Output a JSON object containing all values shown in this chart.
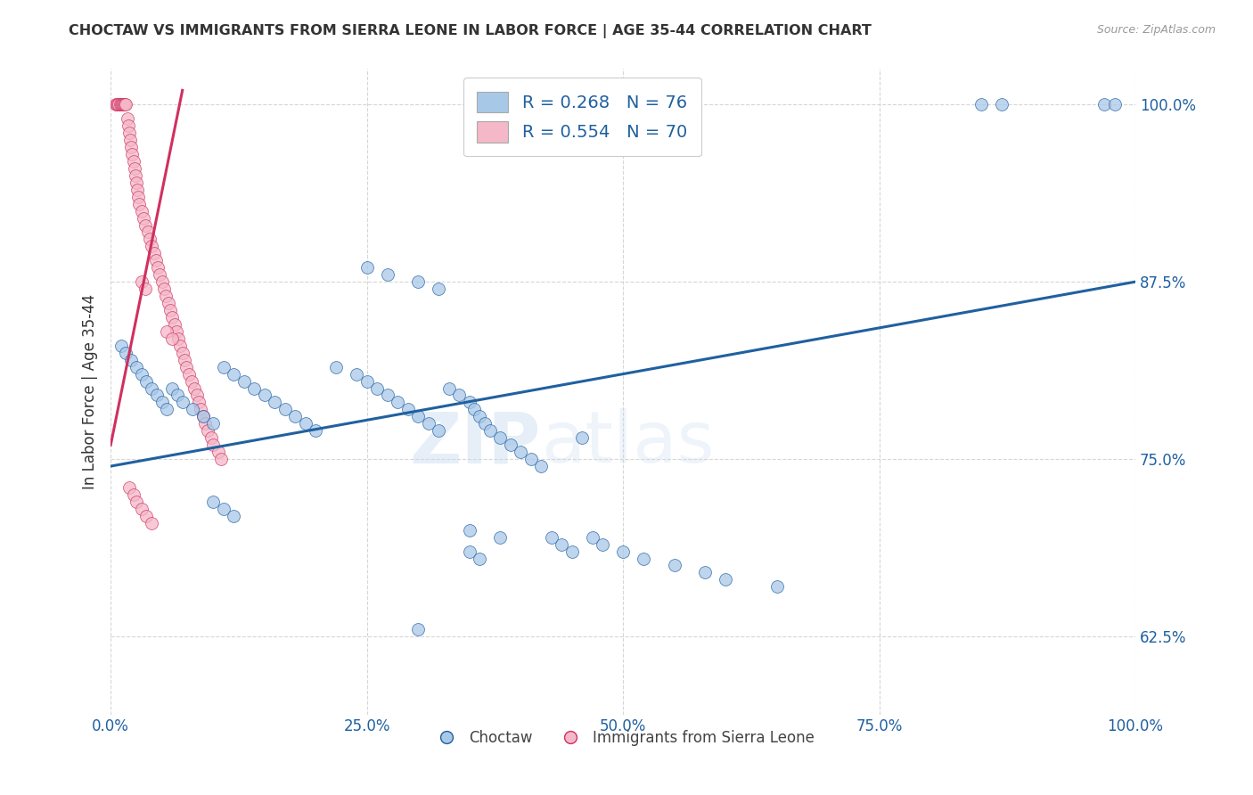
{
  "title": "CHOCTAW VS IMMIGRANTS FROM SIERRA LEONE IN LABOR FORCE | AGE 35-44 CORRELATION CHART",
  "source": "Source: ZipAtlas.com",
  "ylabel": "In Labor Force | Age 35-44",
  "xlim": [
    0.0,
    1.0
  ],
  "ylim": [
    0.57,
    1.025
  ],
  "yticks": [
    0.625,
    0.75,
    0.875,
    1.0
  ],
  "ytick_labels": [
    "62.5%",
    "75.0%",
    "87.5%",
    "100.0%"
  ],
  "xticks": [
    0.0,
    0.25,
    0.5,
    0.75,
    1.0
  ],
  "xtick_labels": [
    "0.0%",
    "25.0%",
    "50.0%",
    "75.0%",
    "100.0%"
  ],
  "legend_text_blue": "R = 0.268   N = 76",
  "legend_text_pink": "R = 0.554   N = 70",
  "legend_label_blue": "Choctaw",
  "legend_label_pink": "Immigrants from Sierra Leone",
  "blue_color": "#a8c8e8",
  "pink_color": "#f4b8c8",
  "trend_blue": "#2060a0",
  "trend_pink": "#d03060",
  "watermark_zip": "ZIP",
  "watermark_atlas": "atlas",
  "blue_trend_x": [
    0.0,
    1.0
  ],
  "blue_trend_y": [
    0.745,
    0.875
  ],
  "pink_trend_x": [
    0.0,
    0.07
  ],
  "pink_trend_y": [
    0.76,
    1.01
  ],
  "blue_scatter_x": [
    0.01,
    0.015,
    0.02,
    0.025,
    0.03,
    0.035,
    0.04,
    0.045,
    0.05,
    0.055,
    0.06,
    0.065,
    0.07,
    0.08,
    0.09,
    0.1,
    0.11,
    0.12,
    0.13,
    0.14,
    0.15,
    0.16,
    0.17,
    0.18,
    0.19,
    0.2,
    0.22,
    0.24,
    0.25,
    0.26,
    0.27,
    0.28,
    0.29,
    0.3,
    0.31,
    0.32,
    0.33,
    0.34,
    0.35,
    0.355,
    0.36,
    0.365,
    0.37,
    0.38,
    0.39,
    0.4,
    0.41,
    0.42,
    0.43,
    0.44,
    0.45,
    0.46,
    0.47,
    0.48,
    0.5,
    0.52,
    0.55,
    0.58,
    0.6,
    0.65,
    0.85,
    0.87,
    0.97,
    0.98,
    0.25,
    0.27,
    0.3,
    0.32,
    0.35,
    0.38,
    0.1,
    0.11,
    0.12,
    0.35,
    0.36,
    0.3
  ],
  "blue_scatter_y": [
    0.83,
    0.825,
    0.82,
    0.815,
    0.81,
    0.805,
    0.8,
    0.795,
    0.79,
    0.785,
    0.8,
    0.795,
    0.79,
    0.785,
    0.78,
    0.775,
    0.815,
    0.81,
    0.805,
    0.8,
    0.795,
    0.79,
    0.785,
    0.78,
    0.775,
    0.77,
    0.815,
    0.81,
    0.805,
    0.8,
    0.795,
    0.79,
    0.785,
    0.78,
    0.775,
    0.77,
    0.8,
    0.795,
    0.79,
    0.785,
    0.78,
    0.775,
    0.77,
    0.765,
    0.76,
    0.755,
    0.75,
    0.745,
    0.695,
    0.69,
    0.685,
    0.765,
    0.695,
    0.69,
    0.685,
    0.68,
    0.675,
    0.67,
    0.665,
    0.66,
    1.0,
    1.0,
    1.0,
    1.0,
    0.885,
    0.88,
    0.875,
    0.87,
    0.7,
    0.695,
    0.72,
    0.715,
    0.71,
    0.685,
    0.68,
    0.63
  ],
  "pink_scatter_x": [
    0.005,
    0.006,
    0.007,
    0.008,
    0.009,
    0.01,
    0.011,
    0.012,
    0.013,
    0.014,
    0.015,
    0.016,
    0.017,
    0.018,
    0.019,
    0.02,
    0.021,
    0.022,
    0.023,
    0.024,
    0.025,
    0.026,
    0.027,
    0.028,
    0.03,
    0.032,
    0.034,
    0.036,
    0.038,
    0.04,
    0.042,
    0.044,
    0.046,
    0.048,
    0.05,
    0.052,
    0.054,
    0.056,
    0.058,
    0.06,
    0.062,
    0.064,
    0.066,
    0.068,
    0.07,
    0.072,
    0.074,
    0.076,
    0.079,
    0.082,
    0.084,
    0.086,
    0.088,
    0.09,
    0.092,
    0.095,
    0.098,
    0.1,
    0.105,
    0.108,
    0.03,
    0.034,
    0.055,
    0.06,
    0.018,
    0.022,
    0.025,
    0.03,
    0.035,
    0.04
  ],
  "pink_scatter_y": [
    1.0,
    1.0,
    1.0,
    1.0,
    1.0,
    1.0,
    1.0,
    1.0,
    1.0,
    1.0,
    1.0,
    0.99,
    0.985,
    0.98,
    0.975,
    0.97,
    0.965,
    0.96,
    0.955,
    0.95,
    0.945,
    0.94,
    0.935,
    0.93,
    0.925,
    0.92,
    0.915,
    0.91,
    0.905,
    0.9,
    0.895,
    0.89,
    0.885,
    0.88,
    0.875,
    0.87,
    0.865,
    0.86,
    0.855,
    0.85,
    0.845,
    0.84,
    0.835,
    0.83,
    0.825,
    0.82,
    0.815,
    0.81,
    0.805,
    0.8,
    0.795,
    0.79,
    0.785,
    0.78,
    0.775,
    0.77,
    0.765,
    0.76,
    0.755,
    0.75,
    0.875,
    0.87,
    0.84,
    0.835,
    0.73,
    0.725,
    0.72,
    0.715,
    0.71,
    0.705
  ]
}
